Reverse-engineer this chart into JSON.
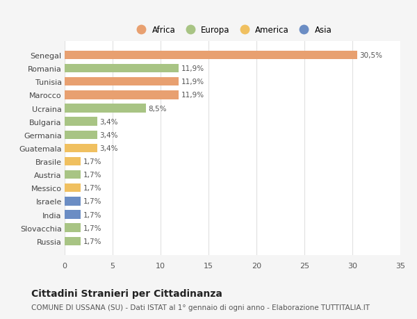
{
  "title": "Cittadini Stranieri per Cittadinanza",
  "subtitle": "COMUNE DI USSANA (SU) - Dati ISTAT al 1° gennaio di ogni anno - Elaborazione TUTTITALIA.IT",
  "categories": [
    "Russia",
    "Slovacchia",
    "India",
    "Israele",
    "Messico",
    "Austria",
    "Brasile",
    "Guatemala",
    "Germania",
    "Bulgaria",
    "Ucraina",
    "Marocco",
    "Tunisia",
    "Romania",
    "Senegal"
  ],
  "values": [
    1.7,
    1.7,
    1.7,
    1.7,
    1.7,
    1.7,
    1.7,
    3.4,
    3.4,
    3.4,
    8.5,
    11.9,
    11.9,
    11.9,
    30.5
  ],
  "colors": [
    "#a8c484",
    "#a8c484",
    "#6b8dc4",
    "#6b8dc4",
    "#f0c060",
    "#a8c484",
    "#f0c060",
    "#f0c060",
    "#a8c484",
    "#a8c484",
    "#a8c484",
    "#e8a070",
    "#e8a070",
    "#a8c484",
    "#e8a070"
  ],
  "labels": [
    "1,7%",
    "1,7%",
    "1,7%",
    "1,7%",
    "1,7%",
    "1,7%",
    "1,7%",
    "3,4%",
    "3,4%",
    "3,4%",
    "8,5%",
    "11,9%",
    "11,9%",
    "11,9%",
    "30,5%"
  ],
  "xlim": [
    0,
    35
  ],
  "xticks": [
    0,
    5,
    10,
    15,
    20,
    25,
    30,
    35
  ],
  "legend_items": [
    {
      "label": "Africa",
      "color": "#e8a070"
    },
    {
      "label": "Europa",
      "color": "#a8c484"
    },
    {
      "label": "America",
      "color": "#f0c060"
    },
    {
      "label": "Asia",
      "color": "#6b8dc4"
    }
  ],
  "fig_background": "#f5f5f5",
  "plot_background": "#ffffff",
  "bar_height": 0.65,
  "label_fontsize": 7.5,
  "title_fontsize": 10,
  "subtitle_fontsize": 7.5,
  "ytick_fontsize": 8,
  "xtick_fontsize": 8
}
